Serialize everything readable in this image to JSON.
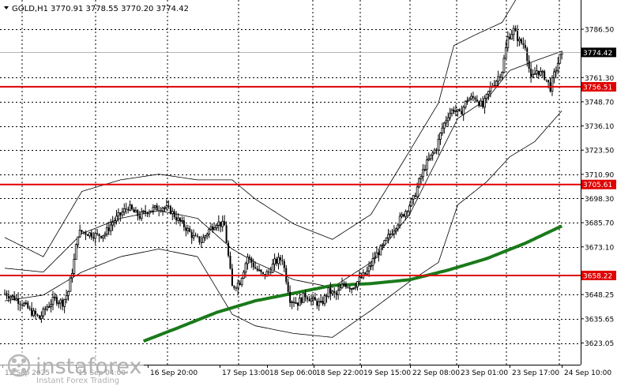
{
  "header": {
    "symbol": "GOLD,H1",
    "ohlc": "3770.91 3778.55 3770.20 3774.42"
  },
  "watermark": {
    "brand": "instaforex",
    "tagline": "Instant Forex Trading"
  },
  "colors": {
    "candle": "#000000",
    "level_line": "#e00000",
    "ma_line": "#1a7a1a",
    "bands": "#000000",
    "grid": "#000000",
    "price_tag_bg": "#000000",
    "level_tag_bg": "#e00000"
  },
  "chart_data": {
    "type": "candlestick",
    "ylim": [
      3620,
      3800
    ],
    "grid": true,
    "y_ticks": [
      {
        "value": 3786.5,
        "label": "3786.50"
      },
      {
        "value": 3761.3,
        "label": "3761.30"
      },
      {
        "value": 3748.7,
        "label": "3748.70"
      },
      {
        "value": 3736.1,
        "label": "3736.10"
      },
      {
        "value": 3723.5,
        "label": "3723.50"
      },
      {
        "value": 3710.9,
        "label": "3710.90"
      },
      {
        "value": 3698.3,
        "label": "3698.30"
      },
      {
        "value": 3685.7,
        "label": "3685.70"
      },
      {
        "value": 3673.1,
        "label": "3673.10"
      },
      {
        "value": 3648.25,
        "label": "3648.25"
      },
      {
        "value": 3635.65,
        "label": "3635.65"
      },
      {
        "value": 3623.05,
        "label": "3623.05"
      }
    ],
    "x_ticks": [
      "12 Sep 2025",
      "15 Sep 04:00",
      "16 Sep 20:00",
      "17 Sep 13:00",
      "18 Sep 06:00",
      "18 Sep 22:00",
      "19 Sep 15:00",
      "22 Sep 08:00",
      "23 Sep 01:00",
      "23 Sep 17:00",
      "24 Sep 10:00"
    ],
    "last_price": {
      "value": 3774.42,
      "label": "3774.42"
    },
    "levels": [
      {
        "value": 3756.51,
        "label": "3756.51"
      },
      {
        "value": 3705.61,
        "label": "3705.61"
      },
      {
        "value": 3658.22,
        "label": "3658.22"
      }
    ],
    "close_path": [
      [
        0,
        3649
      ],
      [
        6,
        3646
      ],
      [
        10,
        3643
      ],
      [
        14,
        3639
      ],
      [
        18,
        3636
      ],
      [
        22,
        3642
      ],
      [
        26,
        3646
      ],
      [
        30,
        3644
      ],
      [
        33,
        3650
      ],
      [
        36,
        3666
      ],
      [
        38,
        3680
      ],
      [
        40,
        3681
      ],
      [
        44,
        3680
      ],
      [
        48,
        3679
      ],
      [
        52,
        3680
      ],
      [
        56,
        3686
      ],
      [
        60,
        3690
      ],
      [
        64,
        3694
      ],
      [
        67,
        3691
      ],
      [
        70,
        3689
      ],
      [
        74,
        3692
      ],
      [
        78,
        3693
      ],
      [
        82,
        3694
      ],
      [
        86,
        3692
      ],
      [
        90,
        3687
      ],
      [
        94,
        3683
      ],
      [
        98,
        3678
      ],
      [
        102,
        3676
      ],
      [
        106,
        3682
      ],
      [
        110,
        3686
      ],
      [
        114,
        3684
      ],
      [
        118,
        3652
      ],
      [
        122,
        3655
      ],
      [
        126,
        3668
      ],
      [
        130,
        3662
      ],
      [
        134,
        3658
      ],
      [
        137,
        3660
      ],
      [
        140,
        3665
      ],
      [
        144,
        3667
      ],
      [
        148,
        3646
      ],
      [
        152,
        3644
      ],
      [
        156,
        3648
      ],
      [
        160,
        3645
      ],
      [
        164,
        3643
      ],
      [
        168,
        3650
      ],
      [
        172,
        3648
      ],
      [
        176,
        3654
      ],
      [
        180,
        3652
      ],
      [
        184,
        3656
      ],
      [
        188,
        3660
      ],
      [
        192,
        3668
      ],
      [
        196,
        3673
      ],
      [
        200,
        3680
      ],
      [
        204,
        3686
      ],
      [
        208,
        3692
      ],
      [
        212,
        3698
      ],
      [
        215,
        3707
      ],
      [
        218,
        3715
      ],
      [
        221,
        3720
      ],
      [
        224,
        3725
      ],
      [
        227,
        3735
      ],
      [
        230,
        3742
      ],
      [
        233,
        3745
      ],
      [
        236,
        3742
      ],
      [
        240,
        3750
      ],
      [
        244,
        3751
      ],
      [
        248,
        3746
      ],
      [
        252,
        3756
      ],
      [
        255,
        3760
      ],
      [
        258,
        3765
      ],
      [
        261,
        3782
      ],
      [
        264,
        3786
      ],
      [
        267,
        3780
      ],
      [
        270,
        3778
      ],
      [
        273,
        3760
      ],
      [
        276,
        3765
      ],
      [
        280,
        3762
      ],
      [
        283,
        3756
      ],
      [
        286,
        3766
      ],
      [
        289,
        3775
      ]
    ],
    "indicators": {
      "moving_average": [
        [
          72,
          3624
        ],
        [
          90,
          3631
        ],
        [
          110,
          3639
        ],
        [
          130,
          3645
        ],
        [
          150,
          3649
        ],
        [
          170,
          3653
        ],
        [
          190,
          3654
        ],
        [
          210,
          3656
        ],
        [
          230,
          3661
        ],
        [
          250,
          3667
        ],
        [
          270,
          3675
        ],
        [
          289,
          3684
        ]
      ],
      "bollinger_upper": [
        [
          0,
          3678
        ],
        [
          20,
          3668
        ],
        [
          40,
          3702
        ],
        [
          60,
          3708
        ],
        [
          80,
          3711
        ],
        [
          100,
          3708
        ],
        [
          118,
          3708
        ],
        [
          130,
          3698
        ],
        [
          150,
          3685
        ],
        [
          170,
          3677
        ],
        [
          190,
          3690
        ],
        [
          210,
          3723
        ],
        [
          225,
          3748
        ],
        [
          233,
          3778
        ],
        [
          245,
          3784
        ],
        [
          258,
          3790
        ],
        [
          270,
          3810
        ],
        [
          289,
          3805
        ]
      ],
      "bollinger_middle": [
        [
          0,
          3662
        ],
        [
          20,
          3660
        ],
        [
          40,
          3680
        ],
        [
          60,
          3688
        ],
        [
          80,
          3692
        ],
        [
          100,
          3688
        ],
        [
          118,
          3672
        ],
        [
          130,
          3665
        ],
        [
          150,
          3656
        ],
        [
          170,
          3652
        ],
        [
          190,
          3665
        ],
        [
          210,
          3690
        ],
        [
          225,
          3720
        ],
        [
          235,
          3740
        ],
        [
          250,
          3750
        ],
        [
          262,
          3765
        ],
        [
          275,
          3770
        ],
        [
          289,
          3775
        ]
      ],
      "bollinger_lower": [
        [
          0,
          3645
        ],
        [
          20,
          3648
        ],
        [
          40,
          3660
        ],
        [
          60,
          3668
        ],
        [
          80,
          3672
        ],
        [
          100,
          3668
        ],
        [
          118,
          3638
        ],
        [
          130,
          3632
        ],
        [
          150,
          3628
        ],
        [
          170,
          3626
        ],
        [
          190,
          3640
        ],
        [
          210,
          3655
        ],
        [
          225,
          3665
        ],
        [
          235,
          3695
        ],
        [
          250,
          3707
        ],
        [
          262,
          3720
        ],
        [
          275,
          3728
        ],
        [
          289,
          3744
        ]
      ]
    }
  }
}
